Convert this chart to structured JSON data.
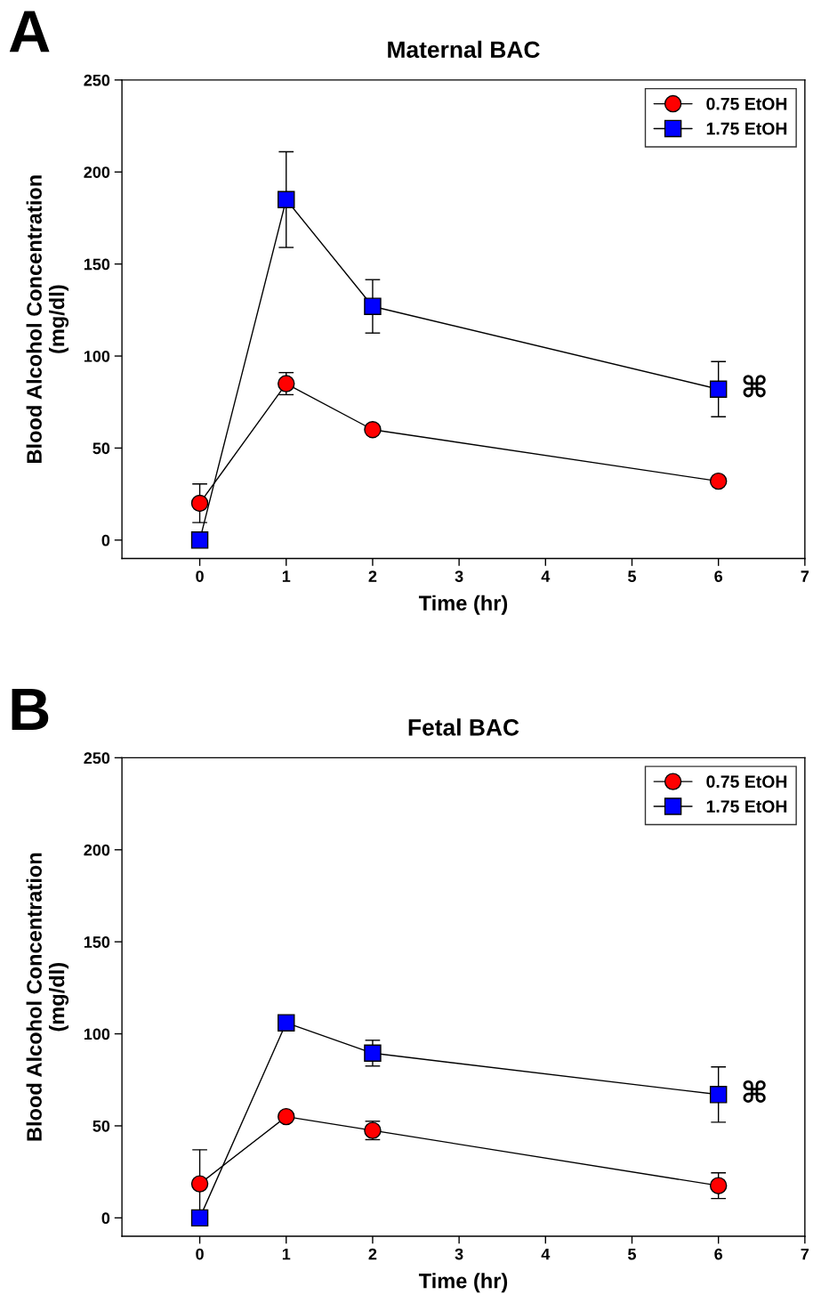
{
  "chart_data": [
    {
      "type": "line",
      "title": "Maternal BAC",
      "xlabel": "Time (hr)",
      "ylabel": "Blood Alcohol Concentration\n(mg/dl)",
      "annotations": [
        "A",
        {
          "text": "⌘",
          "x": 6,
          "y": 82
        }
      ],
      "xlim": [
        -0.9,
        7
      ],
      "xticks": [
        0,
        1,
        2,
        3,
        4,
        5,
        6,
        7
      ],
      "ylim": [
        -10,
        250
      ],
      "yticks": [
        0,
        50,
        100,
        150,
        200,
        250
      ],
      "grid": false,
      "legend": "top right",
      "series": [
        {
          "name": "0.75 EtOH",
          "color": "#ff0000",
          "marker": "circle",
          "x": [
            0,
            1,
            2,
            6
          ],
          "values": [
            20,
            85,
            60,
            32
          ],
          "errors": [
            10.5,
            6,
            null,
            null
          ]
        },
        {
          "name": "1.75 EtOH",
          "color": "#0000ff",
          "marker": "square",
          "x": [
            0,
            1,
            2,
            6
          ],
          "values": [
            0,
            185,
            127,
            82
          ],
          "errors": [
            null,
            26,
            14.5,
            15
          ]
        }
      ]
    },
    {
      "type": "line",
      "title": "Fetal BAC",
      "xlabel": "Time (hr)",
      "ylabel": "Blood Alcohol Concentration\n(mg/dl)",
      "annotations": [
        "B",
        {
          "text": "⌘",
          "x": 6,
          "y": 67
        }
      ],
      "xlim": [
        -0.9,
        7
      ],
      "xticks": [
        0,
        1,
        2,
        3,
        4,
        5,
        6,
        7
      ],
      "ylim": [
        -10,
        250
      ],
      "yticks": [
        0,
        50,
        100,
        150,
        200,
        250
      ],
      "grid": false,
      "legend": "top right",
      "series": [
        {
          "name": "0.75 EtOH",
          "color": "#ff0000",
          "marker": "circle",
          "x": [
            0,
            1,
            2,
            6
          ],
          "values": [
            18.5,
            55,
            47.5,
            17.5
          ],
          "errors": [
            18.5,
            null,
            5,
            7
          ]
        },
        {
          "name": "1.75 EtOH",
          "color": "#0000ff",
          "marker": "square",
          "x": [
            0,
            1,
            2,
            6
          ],
          "values": [
            0,
            106,
            89.5,
            67
          ],
          "errors": [
            null,
            null,
            7,
            15
          ]
        }
      ]
    }
  ]
}
